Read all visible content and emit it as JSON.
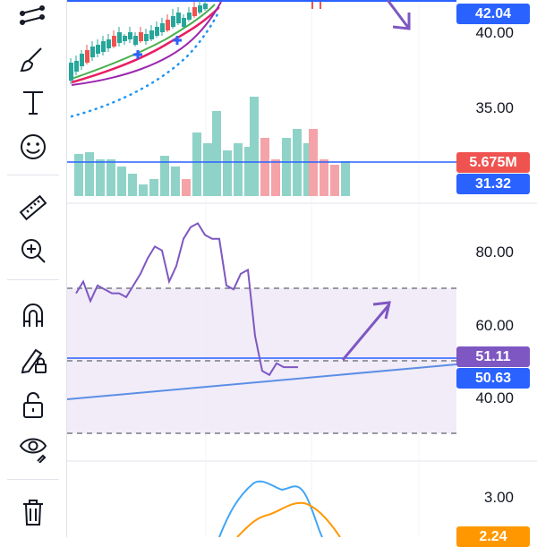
{
  "toolbar": {
    "tools": [
      {
        "name": "trend-lines-icon"
      },
      {
        "name": "brush-icon"
      },
      {
        "name": "text-icon"
      },
      {
        "name": "emoji-icon"
      },
      {
        "name": "ruler-icon"
      },
      {
        "name": "zoom-in-icon"
      },
      {
        "name": "magnet-icon"
      },
      {
        "name": "lock-drawing-icon"
      },
      {
        "name": "unlock-icon"
      },
      {
        "name": "eye-icon"
      },
      {
        "name": "trash-icon"
      }
    ]
  },
  "price_axis": {
    "labels": [
      "40.00",
      "35.00"
    ],
    "price_badge": "42.04",
    "volume_badge": "5.675M",
    "ma_badge": "31.32"
  },
  "rsi_axis": {
    "labels": [
      "80.00",
      "60.00",
      "40.00"
    ],
    "rsi_badge": "51.11",
    "rsi_ma_badge": "50.63"
  },
  "macd_axis": {
    "labels": [
      "3.00"
    ],
    "value_badge": "2.24"
  },
  "colors": {
    "up": "#26a69a",
    "down": "#ef5350",
    "accent_blue": "#2962ff",
    "rsi_purple": "#7e57c2",
    "rsi_band": "#ede7f6",
    "macd_orange": "#ff9800",
    "macd_blue": "#42a5f5"
  },
  "chart_data": {
    "type": "line",
    "panes": [
      {
        "name": "",
        "ylim": [
          32,
          43
        ],
        "last_price": 42.04,
        "volume_last": "5.675M",
        "volume_ma": 31.32
      },
      {
        "name": "",
        "ylim": [
          28,
          92
        ],
        "band": [
          30,
          70
        ],
        "x": [
          0,
          1,
          2,
          3,
          4,
          5,
          6,
          7,
          8,
          9,
          10,
          11,
          12,
          13,
          14,
          15,
          16,
          17,
          18,
          19,
          20,
          21,
          22,
          23,
          24,
          25,
          26,
          27,
          28,
          29,
          30,
          31,
          32,
          33,
          34,
          35,
          36,
          37,
          38
        ],
        "values": [
          70,
          73,
          68,
          72,
          71,
          70,
          70,
          69,
          72,
          75,
          79,
          82,
          81,
          73,
          77,
          84,
          87,
          88,
          85,
          84,
          84,
          72,
          71,
          75,
          76,
          59,
          50,
          49,
          52,
          51,
          51,
          51,
          51,
          51,
          51,
          51,
          51,
          51,
          51
        ],
        "rsi_last": 51.11,
        "rsi_ma_last": 50.63
      },
      {
        "name": "",
        "ylim": [
          1.5,
          3.5
        ],
        "last_value": 2.24
      }
    ]
  }
}
